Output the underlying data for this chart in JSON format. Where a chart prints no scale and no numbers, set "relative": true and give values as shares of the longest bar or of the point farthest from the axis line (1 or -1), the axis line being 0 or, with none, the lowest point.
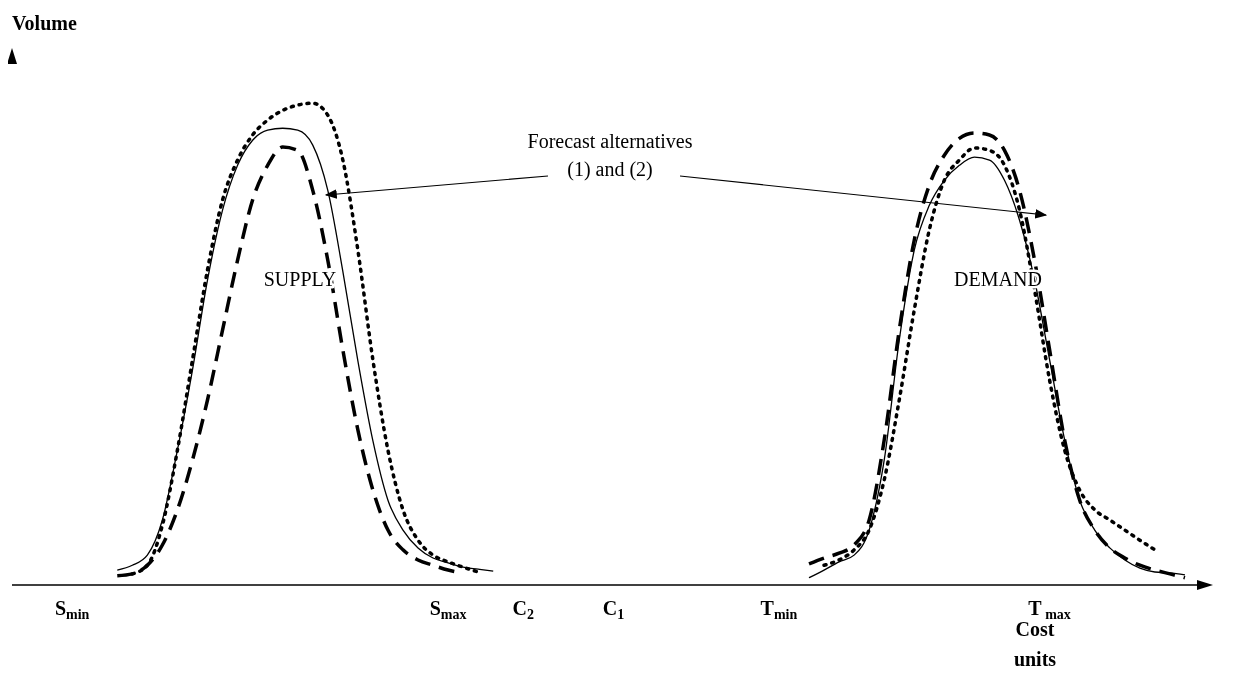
{
  "chart_data": {
    "type": "line",
    "relative": true,
    "ylabel": "Volume",
    "xlabel": "Cost\nunits",
    "legend": false,
    "grid": false,
    "categories": [
      null,
      null,
      null,
      null,
      "S$_{min}$",
      null,
      null,
      null,
      null,
      null,
      null,
      null,
      null,
      null,
      null,
      null,
      null,
      null,
      null,
      null,
      null,
      null,
      null,
      null,
      null,
      null,
      null,
      null,
      null,
      "S$_{max}$",
      null,
      null,
      null,
      null,
      "C$_{2}$",
      null,
      null,
      null,
      null,
      null,
      "C$_{1}$",
      null,
      null,
      null,
      null,
      null,
      null,
      null,
      null,
      null,
      null,
      "T$_{min}$",
      null,
      null,
      null,
      null,
      null,
      null,
      null,
      null,
      null,
      null,
      null,
      null,
      null,
      null,
      null,
      null,
      null,
      "T$_{ max}$",
      null,
      null,
      null,
      null,
      null,
      null,
      null,
      null,
      null,
      null
    ],
    "annotations": [
      "Forecast alternatives\n(1) and (2)",
      "SUPPLY",
      "DEMAND"
    ],
    "series": [
      {
        "color": "#000000",
        "line_style": "solid",
        "values": [
          null,
          null,
          null,
          null,
          null,
          null,
          null,
          0.031,
          0.041,
          0.062,
          0.135,
          0.28,
          0.446,
          0.633,
          0.778,
          0.871,
          0.923,
          0.944,
          0.948,
          0.944,
          0.913,
          0.819,
          0.651,
          0.465,
          0.299,
          0.176,
          0.114,
          0.077,
          0.056,
          0.046,
          0.037,
          0.033,
          0.029,
          null,
          null,
          null,
          null,
          null,
          null,
          null,
          null,
          null,
          null,
          null,
          null,
          null,
          null,
          null,
          null,
          null,
          null,
          null,
          null,
          null,
          null,
          null,
          null,
          null,
          null,
          null,
          null,
          null,
          null,
          null,
          null,
          null,
          null,
          null,
          null,
          null,
          null,
          null,
          null,
          null,
          null,
          null,
          null,
          null,
          null,
          null
        ]
      },
      {
        "color": "#000000",
        "line_style": "dotted",
        "values": [
          null,
          null,
          null,
          null,
          null,
          null,
          null,
          null,
          0.023,
          0.041,
          0.124,
          0.28,
          0.467,
          0.654,
          0.799,
          0.882,
          0.934,
          0.965,
          0.985,
          0.996,
          1,
          0.975,
          0.882,
          0.695,
          0.467,
          0.28,
          0.156,
          0.093,
          0.062,
          0.048,
          0.037,
          0.027,
          null,
          null,
          null,
          null,
          null,
          null,
          null,
          null,
          null,
          null,
          null,
          null,
          null,
          null,
          null,
          null,
          null,
          null,
          null,
          null,
          null,
          null,
          null,
          null,
          null,
          null,
          null,
          null,
          null,
          null,
          null,
          null,
          null,
          null,
          null,
          null,
          null,
          null,
          null,
          null,
          null,
          null,
          null,
          null,
          null,
          null,
          null,
          null
        ]
      },
      {
        "color": "#000000",
        "line_style": "dashed",
        "values": [
          null,
          null,
          null,
          null,
          null,
          null,
          null,
          0.019,
          0.023,
          0.041,
          0.083,
          0.156,
          0.259,
          0.384,
          0.529,
          0.674,
          0.799,
          0.871,
          0.909,
          0.902,
          0.819,
          0.674,
          0.488,
          0.322,
          0.197,
          0.114,
          0.073,
          0.052,
          0.041,
          0.031,
          0.025,
          null,
          null,
          null,
          null,
          null,
          null,
          null,
          null,
          null,
          null,
          null,
          null,
          null,
          null,
          null,
          null,
          null,
          null,
          null,
          null,
          null,
          null,
          null,
          null,
          null,
          null,
          null,
          null,
          null,
          null,
          null,
          null,
          null,
          null,
          null,
          null,
          null,
          null,
          null,
          null,
          null,
          null,
          null,
          null,
          null,
          null,
          null,
          null,
          null
        ]
      },
      {
        "color": "#000000",
        "line_style": "solid",
        "values": [
          null,
          null,
          null,
          null,
          null,
          null,
          null,
          null,
          null,
          null,
          null,
          null,
          null,
          null,
          null,
          null,
          null,
          null,
          null,
          null,
          null,
          null,
          null,
          null,
          null,
          null,
          null,
          null,
          null,
          null,
          null,
          null,
          null,
          null,
          null,
          null,
          null,
          null,
          null,
          null,
          null,
          null,
          null,
          null,
          null,
          null,
          null,
          null,
          null,
          null,
          null,
          null,
          null,
          0.015,
          0.031,
          0.048,
          0.062,
          0.114,
          0.259,
          0.508,
          0.695,
          0.788,
          0.84,
          0.871,
          0.888,
          0.882,
          0.84,
          0.757,
          0.633,
          0.467,
          0.301,
          0.176,
          0.114,
          0.077,
          0.052,
          0.035,
          0.027,
          0.025,
          0.021,
          null
        ]
      },
      {
        "color": "#000000",
        "line_style": "dashed",
        "values": [
          null,
          null,
          null,
          null,
          null,
          null,
          null,
          null,
          null,
          null,
          null,
          null,
          null,
          null,
          null,
          null,
          null,
          null,
          null,
          null,
          null,
          null,
          null,
          null,
          null,
          null,
          null,
          null,
          null,
          null,
          null,
          null,
          null,
          null,
          null,
          null,
          null,
          null,
          null,
          null,
          null,
          null,
          null,
          null,
          null,
          null,
          null,
          null,
          null,
          null,
          null,
          null,
          null,
          0.044,
          0.056,
          0.066,
          0.083,
          0.135,
          0.301,
          0.529,
          0.716,
          0.83,
          0.892,
          0.927,
          0.938,
          0.934,
          0.902,
          0.819,
          0.674,
          0.488,
          0.301,
          0.176,
          0.114,
          0.077,
          0.056,
          0.041,
          0.031,
          0.023,
          0.015,
          null
        ]
      },
      {
        "color": "#000000",
        "line_style": "dotted",
        "values": [
          null,
          null,
          null,
          null,
          null,
          null,
          null,
          null,
          null,
          null,
          null,
          null,
          null,
          null,
          null,
          null,
          null,
          null,
          null,
          null,
          null,
          null,
          null,
          null,
          null,
          null,
          null,
          null,
          null,
          null,
          null,
          null,
          null,
          null,
          null,
          null,
          null,
          null,
          null,
          null,
          null,
          null,
          null,
          null,
          null,
          null,
          null,
          null,
          null,
          null,
          null,
          null,
          null,
          null,
          0.041,
          0.052,
          0.073,
          0.114,
          0.218,
          0.384,
          0.571,
          0.737,
          0.84,
          0.882,
          0.907,
          0.902,
          0.871,
          0.778,
          0.612,
          0.425,
          0.28,
          0.197,
          0.156,
          0.135,
          0.114,
          0.093,
          0.073,
          null,
          null,
          null
        ]
      }
    ]
  }
}
